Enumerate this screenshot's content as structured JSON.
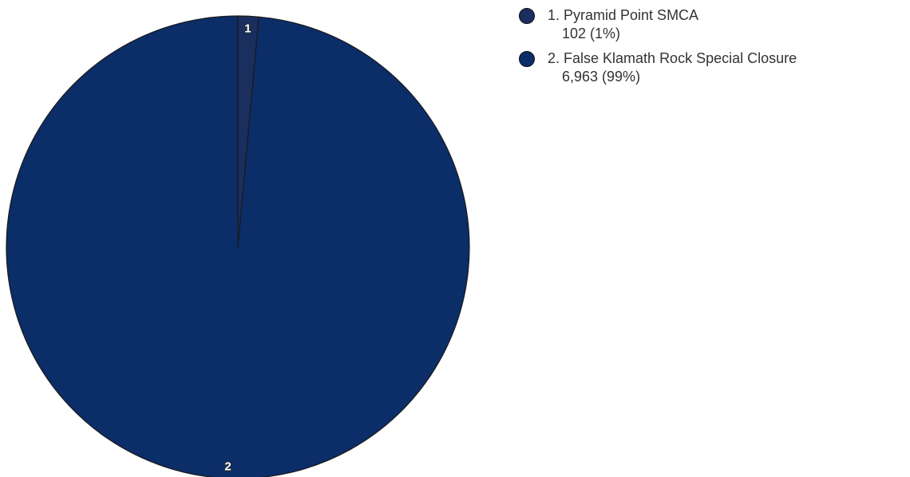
{
  "chart_data": {
    "type": "pie",
    "title": "",
    "slices": [
      {
        "index_label": "1",
        "legend_label": "1. Pyramid Point SMCA",
        "value": 102,
        "value_label": "102 (1%)",
        "color": "#1b2f5e"
      },
      {
        "index_label": "2",
        "legend_label": "2. False Klamath Rock Special Closure",
        "value": 6963,
        "value_label": "6,963 (99%)",
        "color": "#0b2d68"
      }
    ],
    "legend": "right"
  }
}
